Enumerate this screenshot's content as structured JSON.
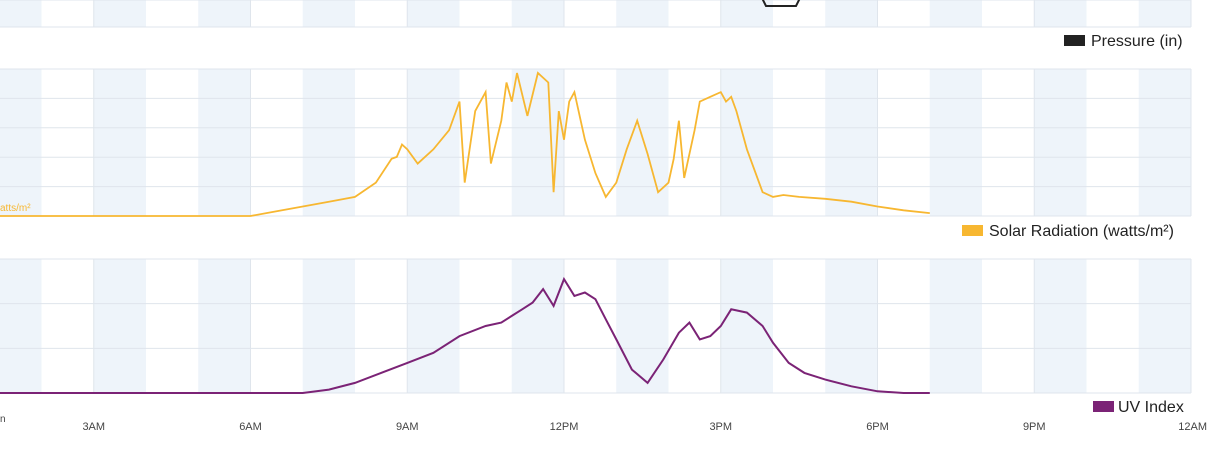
{
  "colors": {
    "band": "#eef4fa",
    "grid": "#dfe5ec",
    "pressure": "#222222",
    "solar": "#f7b731",
    "uv": "#7b2376"
  },
  "pressure_legend": "Pressure (in)",
  "solar_unit_fragment": "atts/m²",
  "uv_unit_fragment": "n",
  "chart_data": [
    {
      "type": "line",
      "name": "Solar Radiation (watts/m²)",
      "xlim": [
        0,
        24
      ],
      "x": [
        0.2,
        1,
        2,
        3,
        4,
        5,
        6,
        6.5,
        7,
        7.5,
        8,
        8.4,
        8.7,
        8.8,
        8.9,
        9.0,
        9.2,
        9.5,
        9.8,
        10.0,
        10.1,
        10.3,
        10.5,
        10.6,
        10.8,
        10.9,
        11.0,
        11.1,
        11.3,
        11.5,
        11.7,
        11.8,
        11.9,
        12.0,
        12.1,
        12.2,
        12.4,
        12.6,
        12.8,
        13.0,
        13.2,
        13.4,
        13.6,
        13.8,
        14.0,
        14.1,
        14.2,
        14.3,
        14.5,
        14.6,
        14.8,
        15.0,
        15.1,
        15.2,
        15.3,
        15.5,
        15.8,
        16.0,
        16.2,
        16.5,
        17.0,
        17.5,
        18.0,
        18.5,
        19.0
      ],
      "values": [
        0,
        0,
        0,
        0,
        0,
        0,
        0,
        5,
        10,
        15,
        20,
        35,
        60,
        62,
        75,
        70,
        55,
        70,
        90,
        120,
        35,
        110,
        130,
        55,
        100,
        140,
        120,
        150,
        105,
        150,
        140,
        25,
        110,
        80,
        120,
        130,
        80,
        45,
        20,
        35,
        70,
        100,
        65,
        25,
        35,
        60,
        100,
        40,
        90,
        120,
        125,
        130,
        120,
        125,
        110,
        70,
        25,
        20,
        22,
        20,
        18,
        15,
        10,
        6,
        3
      ],
      "ylim": [
        0,
        150
      ]
    },
    {
      "type": "line",
      "name": "UV Index",
      "xlim": [
        0,
        24
      ],
      "x": [
        0,
        1,
        2,
        3,
        4,
        5,
        6,
        7,
        7.5,
        8,
        8.5,
        9.0,
        9.5,
        10.0,
        10.5,
        10.8,
        11.0,
        11.2,
        11.4,
        11.6,
        11.8,
        12.0,
        12.2,
        12.4,
        12.6,
        12.8,
        13.0,
        13.3,
        13.6,
        13.9,
        14.2,
        14.4,
        14.6,
        14.8,
        15.0,
        15.2,
        15.5,
        15.8,
        16.0,
        16.3,
        16.6,
        17.0,
        17.5,
        18.0,
        18.5,
        19.0
      ],
      "values": [
        0,
        0,
        0,
        0,
        0,
        0,
        0,
        0,
        0.1,
        0.3,
        0.6,
        0.9,
        1.2,
        1.7,
        2.0,
        2.1,
        2.3,
        2.5,
        2.7,
        3.1,
        2.6,
        3.4,
        2.9,
        3.0,
        2.8,
        2.2,
        1.6,
        0.7,
        0.3,
        1.0,
        1.8,
        2.1,
        1.6,
        1.7,
        2.0,
        2.5,
        2.4,
        2.0,
        1.5,
        0.9,
        0.6,
        0.4,
        0.2,
        0.05,
        0,
        0
      ],
      "ylim": [
        0,
        4
      ]
    }
  ],
  "x_axis": {
    "tick_labels": [
      "3AM",
      "6AM",
      "9AM",
      "12PM",
      "3PM",
      "6PM",
      "9PM",
      "12AM"
    ],
    "tick_hours": [
      3,
      6,
      9,
      12,
      15,
      18,
      21,
      24
    ]
  }
}
